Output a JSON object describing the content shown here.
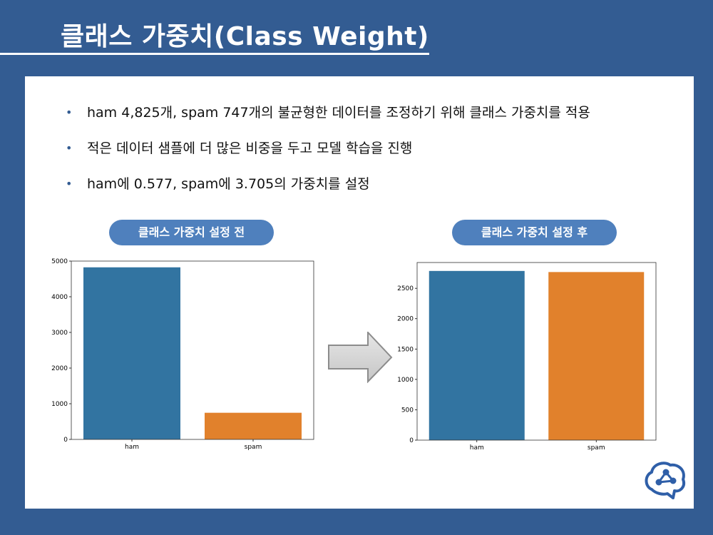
{
  "slide": {
    "title": "클래스 가중치(Class Weight)",
    "bullets": [
      "ham 4,825개,  spam 747개의 불균형한 데이터를 조정하기 위해 클래스 가중치를 적용",
      "적은 데이터 샘플에 더 많은 비중을 두고 모델 학습을 진행",
      "ham에 0.577, spam에 3.705의 가중치를 설정"
    ],
    "before_label": "클래스 가중치 설정 전",
    "after_label": "클래스 가중치 설정 후"
  },
  "colors": {
    "background": "#335c92",
    "pill": "#4f80bd",
    "ham": "#3274a1",
    "spam": "#e1812c"
  },
  "chart_data": [
    {
      "type": "bar",
      "categories": [
        "ham",
        "spam"
      ],
      "values": [
        4825,
        747
      ],
      "ylim": [
        0,
        5000
      ],
      "yticks": [
        0,
        1000,
        2000,
        3000,
        4000,
        5000
      ],
      "colors": [
        "#3274a1",
        "#e1812c"
      ],
      "title": "",
      "xlabel": "",
      "ylabel": ""
    },
    {
      "type": "bar",
      "categories": [
        "ham",
        "spam"
      ],
      "values": [
        2786,
        2768
      ],
      "ylim": [
        0,
        2925
      ],
      "yticks": [
        0,
        500,
        1000,
        1500,
        2000,
        2500
      ],
      "colors": [
        "#3274a1",
        "#e1812c"
      ],
      "title": "",
      "xlabel": "",
      "ylabel": ""
    }
  ]
}
